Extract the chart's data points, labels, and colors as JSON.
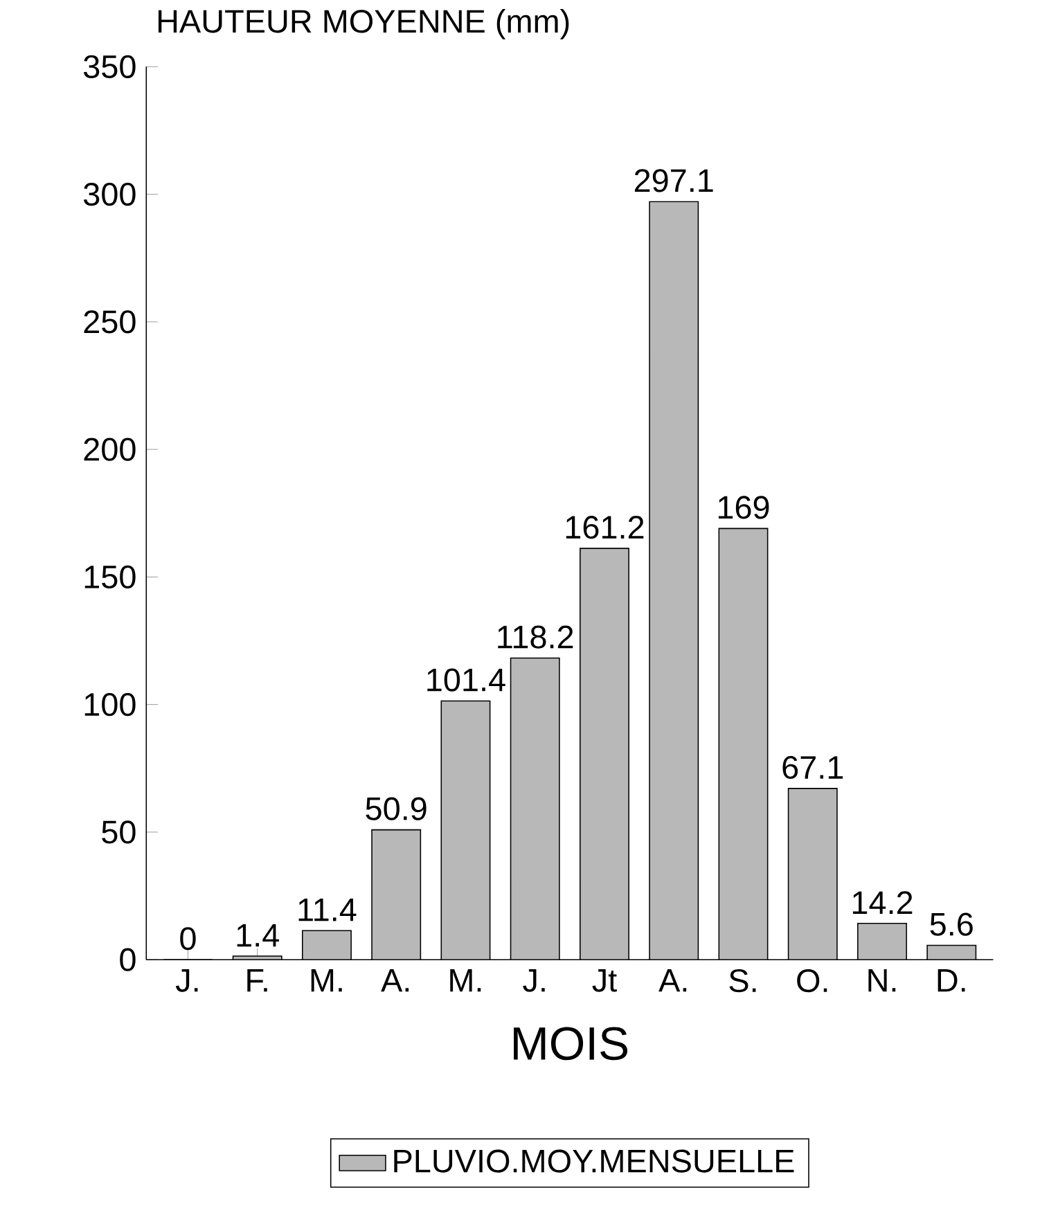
{
  "chart_data": {
    "type": "bar",
    "ylabel": "HAUTEUR MOYENNE (mm)",
    "xlabel": "MOIS",
    "categories": [
      "J.",
      "F.",
      "M.",
      "A.",
      "M.",
      "J.",
      "Jt",
      "A.",
      "S.",
      "O.",
      "N.",
      "D."
    ],
    "series": [
      {
        "name": "PLUVIO.MOY.MENSUELLE",
        "color": "#b8b8b8",
        "values": [
          0,
          1.4,
          11.4,
          50.9,
          101.4,
          118.2,
          161.2,
          297.1,
          169,
          67.1,
          14.2,
          5.6
        ]
      }
    ],
    "ylim": [
      0,
      350
    ],
    "yticks": [
      0,
      50,
      100,
      150,
      200,
      250,
      300,
      350
    ],
    "data_labels": true,
    "legend": "bottom"
  }
}
